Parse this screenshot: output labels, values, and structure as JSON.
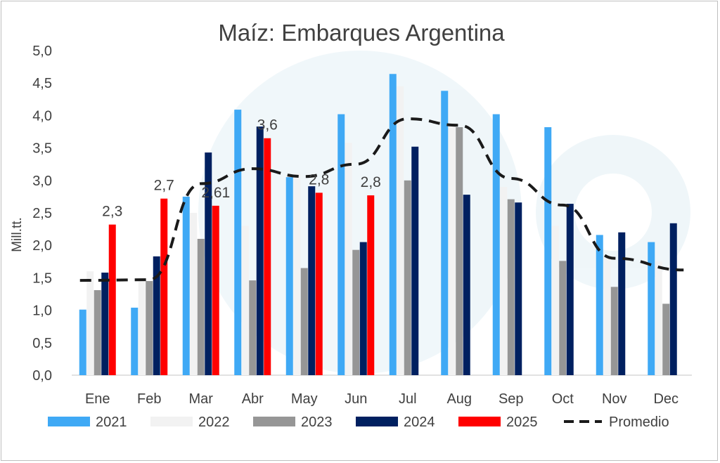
{
  "chart_data": {
    "type": "bar",
    "title": "Maíz: Embarques Argentina",
    "ylabel": "Mill.tt.",
    "ylim": [
      0,
      5
    ],
    "yticks": [
      "0,0",
      "0,5",
      "1,0",
      "1,5",
      "2,0",
      "2,5",
      "3,0",
      "3,5",
      "4,0",
      "4,5",
      "5,0"
    ],
    "yticks_values": [
      0,
      0.5,
      1,
      1.5,
      2,
      2.5,
      3,
      3.5,
      4,
      4.5,
      5
    ],
    "categories": [
      "Ene",
      "Feb",
      "Mar",
      "Abr",
      "May",
      "Jun",
      "Jul",
      "Aug",
      "Sep",
      "Oct",
      "Nov",
      "Dec"
    ],
    "series": [
      {
        "name": "2021",
        "color": "#3fa9f5",
        "values": [
          1.01,
          1.04,
          2.75,
          4.09,
          3.05,
          4.02,
          4.64,
          4.38,
          4.02,
          3.82,
          2.16,
          2.05
        ]
      },
      {
        "name": "2022",
        "color": "#f2f2f2",
        "values": [
          1.6,
          1.45,
          2.5,
          2.3,
          3.1,
          3.58,
          4.45,
          3.85,
          2.9,
          2.3,
          1.8,
          1.75
        ]
      },
      {
        "name": "2023",
        "color": "#969696",
        "values": [
          1.31,
          1.45,
          2.1,
          1.46,
          1.65,
          1.93,
          3.0,
          3.82,
          2.71,
          1.76,
          1.36,
          1.1
        ]
      },
      {
        "name": "2024",
        "color": "#002060",
        "values": [
          1.58,
          1.83,
          3.43,
          3.83,
          2.91,
          2.05,
          3.52,
          2.78,
          2.66,
          2.64,
          2.2,
          2.34
        ]
      },
      {
        "name": "2025",
        "color": "#ff0000",
        "values": [
          2.32,
          2.72,
          2.61,
          3.65,
          2.81,
          2.77,
          null,
          null,
          null,
          null,
          null,
          null
        ]
      }
    ],
    "line": {
      "name": "Promedio",
      "style": "dashed",
      "color": "#1a1a1a",
      "values": [
        1.46,
        1.47,
        2.95,
        3.18,
        3.06,
        3.25,
        3.95,
        3.85,
        3.03,
        2.62,
        1.8,
        1.62
      ]
    },
    "data_labels": [
      {
        "category": "Ene",
        "text": "2,3"
      },
      {
        "category": "Feb",
        "text": "2,7"
      },
      {
        "category": "Mar",
        "text": "2,61"
      },
      {
        "category": "Abr",
        "text": "3,6"
      },
      {
        "category": "May",
        "text": "2,8"
      },
      {
        "category": "Jun",
        "text": "2,8"
      }
    ],
    "legend": {
      "position": "bottom",
      "items": [
        "2021",
        "2022",
        "2023",
        "2024",
        "2025",
        "Promedio"
      ]
    },
    "grid": false
  }
}
